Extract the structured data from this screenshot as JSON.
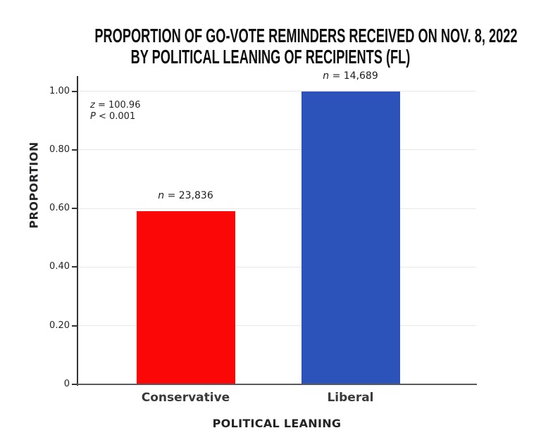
{
  "title": {
    "line1": "PROPORTION OF GO-VOTE REMINDERS RECEIVED ON NOV. 8, 2022",
    "line2": "BY POLITICAL LEANING OF RECIPIENTS (FL)"
  },
  "chart_data": {
    "type": "bar",
    "title": "PROPORTION OF GO-VOTE REMINDERS RECEIVED ON NOV. 8, 2022 BY POLITICAL LEANING OF RECIPIENTS (FL)",
    "xlabel": "POLITICAL LEANING",
    "ylabel": "PROPORTION",
    "categories": [
      "Conservative",
      "Liberal"
    ],
    "values": [
      0.59,
      1.0
    ],
    "counts": [
      23836,
      14689
    ],
    "bar_labels": [
      {
        "var": "n",
        "text": " = 23,836"
      },
      {
        "var": "n",
        "text": " = 14,689"
      }
    ],
    "bar_colors": [
      "#fb0707",
      "#2b53ba"
    ],
    "annotation": {
      "lines": [
        {
          "var": "z",
          "text": " = 100.96"
        },
        {
          "var": "P",
          "text": " < 0.001"
        }
      ]
    },
    "yticks": [
      {
        "value": 1.0,
        "label": "1.00"
      },
      {
        "value": 0.8,
        "label": "0.80"
      },
      {
        "value": 0.6,
        "label": "0.60"
      },
      {
        "value": 0.4,
        "label": "0.40"
      },
      {
        "value": 0.2,
        "label": "0.20"
      },
      {
        "value": 0.0,
        "label": "0"
      }
    ],
    "ylim": [
      0,
      1.05
    ],
    "grid": "horizontal-light",
    "legend": "none",
    "colors": {
      "grid": "#e8e8ea",
      "y_axis": "#343436",
      "x_axis": "#59595d",
      "text": "#242427",
      "title": "#0e0e0e"
    }
  }
}
